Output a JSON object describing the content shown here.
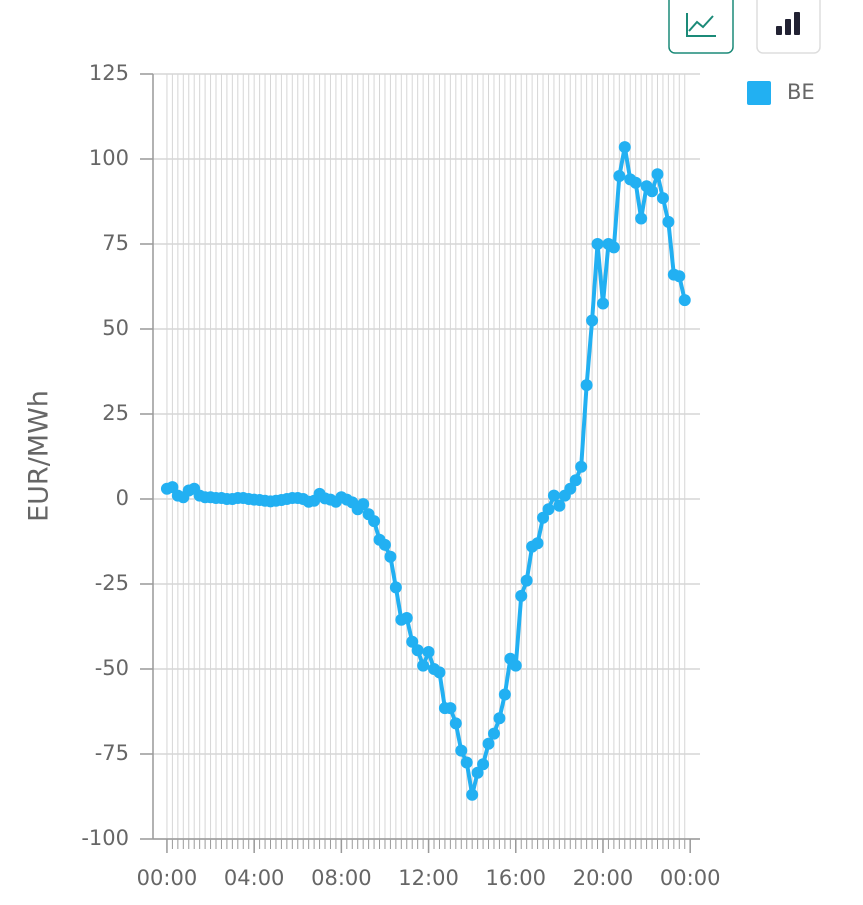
{
  "chart_data": {
    "type": "line",
    "y_label": "EUR/MWh",
    "x": [
      0,
      0.25,
      0.5,
      0.75,
      1,
      1.25,
      1.5,
      1.75,
      2,
      2.25,
      2.5,
      2.75,
      3,
      3.25,
      3.5,
      3.75,
      4,
      4.25,
      4.5,
      4.75,
      5,
      5.25,
      5.5,
      5.75,
      6,
      6.25,
      6.5,
      6.75,
      7,
      7.25,
      7.5,
      7.75,
      8,
      8.25,
      8.5,
      8.75,
      9,
      9.25,
      9.5,
      9.75,
      10,
      10.25,
      10.5,
      10.75,
      11,
      11.25,
      11.5,
      11.75,
      12,
      12.25,
      12.5,
      12.75,
      13,
      13.25,
      13.5,
      13.75,
      14,
      14.25,
      14.5,
      14.75,
      15,
      15.25,
      15.5,
      15.75,
      16,
      16.25,
      16.5,
      16.75,
      17,
      17.25,
      17.5,
      17.75,
      18,
      18.25,
      18.5,
      18.75,
      19,
      19.25,
      19.5,
      19.75,
      20,
      20.25,
      20.5,
      20.75,
      21,
      21.25,
      21.5,
      21.75,
      22,
      22.25,
      22.5,
      22.75,
      23,
      23.25,
      23.5,
      23.75
    ],
    "series": [
      {
        "name": "BE",
        "color": "#22b0f2",
        "values": [
          3,
          3.5,
          1,
          0.5,
          2.5,
          3,
          1,
          0.5,
          0.5,
          0.3,
          0.3,
          0,
          0,
          0.3,
          0.3,
          0,
          -0.2,
          -0.3,
          -0.5,
          -0.7,
          -0.5,
          -0.3,
          0,
          0.3,
          0.3,
          0,
          -0.8,
          -0.5,
          1.5,
          0.2,
          -0.2,
          -0.8,
          0.5,
          -0.2,
          -1,
          -3,
          -1.5,
          -4.5,
          -6.5,
          -12,
          -13.5,
          -17,
          -26,
          -35.5,
          -35,
          -42,
          -44.5,
          -49,
          -45,
          -50,
          -51,
          -61.5,
          -61.5,
          -66,
          -74,
          -77.5,
          -87,
          -80.5,
          -78,
          -72,
          -69,
          -64.5,
          -57.5,
          -47,
          -49,
          -28.5,
          -24,
          -14,
          -13,
          -5.5,
          -3,
          1,
          -2,
          1,
          3,
          5.5,
          9.5,
          33.5,
          52.5,
          75,
          57.5,
          75,
          74,
          95,
          103.5,
          94,
          93,
          82.5,
          92,
          90.5,
          95.5,
          88.5,
          81.5,
          66,
          65.5,
          58.5
        ]
      }
    ],
    "xlim": [
      -0.64,
      24.45
    ],
    "xticks": [
      {
        "value": 0,
        "label": "00:00"
      },
      {
        "value": 4,
        "label": "04:00"
      },
      {
        "value": 8,
        "label": "08:00"
      },
      {
        "value": 12,
        "label": "12:00"
      },
      {
        "value": 16,
        "label": "16:00"
      },
      {
        "value": 20,
        "label": "20:00"
      },
      {
        "value": 24,
        "label": "00:00"
      }
    ],
    "ylim": [
      -100,
      125
    ],
    "yticks": [
      -100,
      -75,
      -50,
      -25,
      0,
      25,
      50,
      75,
      100,
      125
    ],
    "grid": true
  }
}
